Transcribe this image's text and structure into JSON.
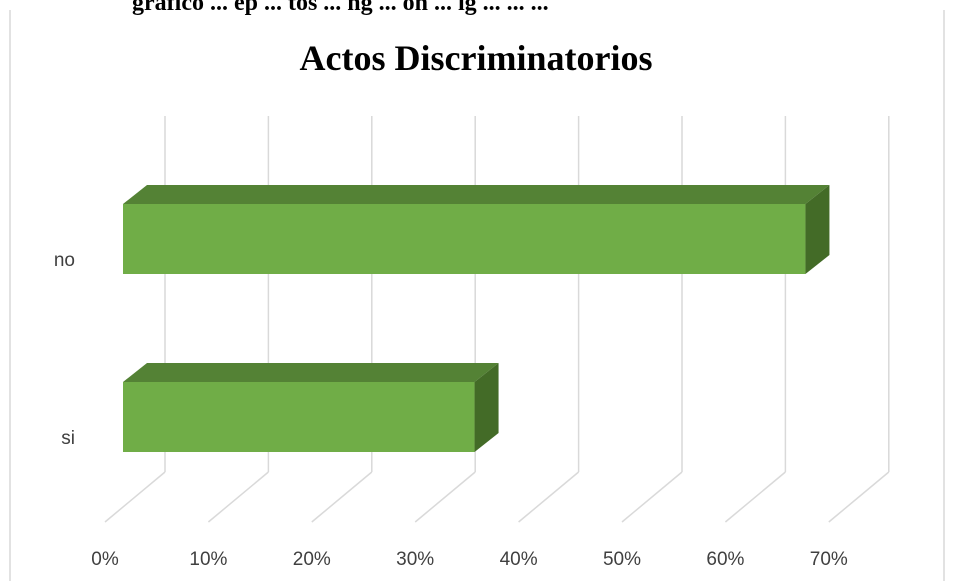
{
  "caption_fragment": "gráfico ... ep ... tos ... ng ... ón ... ig ... ... ...",
  "chart_data": {
    "type": "bar",
    "orientation": "horizontal",
    "style": "3d",
    "title": "Actos Discriminatorios",
    "categories": [
      "no",
      "si"
    ],
    "values": [
      0.66,
      0.34
    ],
    "xlim": [
      0,
      0.7
    ],
    "x_ticks": [
      "0%",
      "10%",
      "20%",
      "30%",
      "40%",
      "50%",
      "60%",
      "70%"
    ],
    "grid": true,
    "legend": "none",
    "colors": {
      "bar_front": "#70ad47",
      "bar_top": "#548235",
      "bar_side": "#436b27",
      "gridline": "#d9d9d9",
      "text": "#404040",
      "title": "#000000"
    }
  }
}
